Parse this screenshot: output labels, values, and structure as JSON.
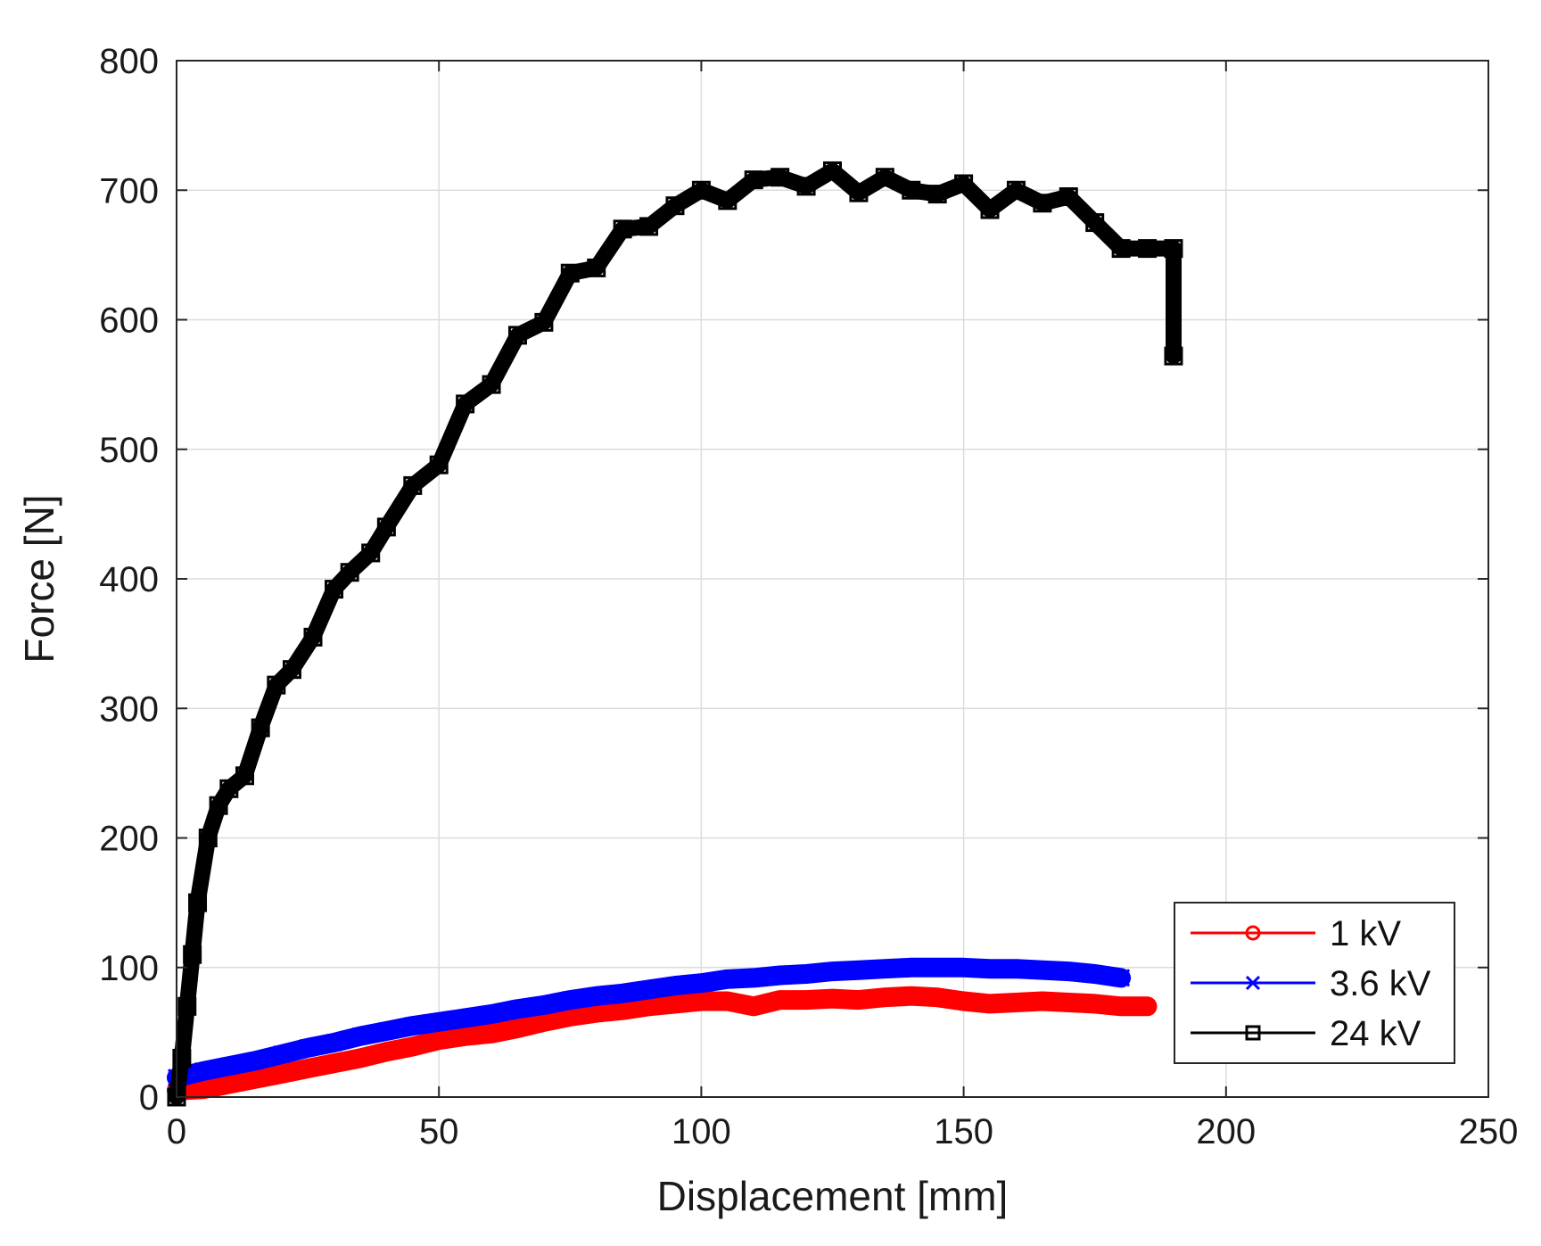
{
  "chart_data": {
    "type": "line",
    "title": "",
    "xlabel": "Displacement [mm]",
    "ylabel": "Force [N]",
    "xlim": [
      0,
      250
    ],
    "ylim": [
      0,
      800
    ],
    "xticks": [
      0,
      50,
      100,
      150,
      200,
      250
    ],
    "yticks": [
      0,
      100,
      200,
      300,
      400,
      500,
      600,
      700,
      800
    ],
    "grid": true,
    "legend_position": "bottom-right",
    "series": [
      {
        "name": "1 kV",
        "color": "#ff0000",
        "marker": "circle",
        "x": [
          0,
          5,
          10,
          15,
          20,
          25,
          30,
          35,
          40,
          45,
          50,
          55,
          60,
          65,
          70,
          75,
          80,
          85,
          90,
          95,
          100,
          105,
          110,
          115,
          120,
          125,
          130,
          135,
          140,
          145,
          150,
          155,
          160,
          165,
          170,
          175,
          180,
          185
        ],
        "y": [
          5,
          6,
          10,
          14,
          18,
          22,
          26,
          30,
          35,
          39,
          44,
          47,
          49,
          53,
          58,
          62,
          65,
          67,
          70,
          72,
          74,
          74,
          70,
          75,
          75,
          76,
          75,
          77,
          78,
          77,
          74,
          72,
          73,
          74,
          73,
          72,
          70,
          70
        ]
      },
      {
        "name": "3.6 kV",
        "color": "#0000ff",
        "marker": "x",
        "x": [
          0,
          5,
          10,
          15,
          20,
          25,
          30,
          35,
          40,
          45,
          50,
          55,
          60,
          65,
          70,
          75,
          80,
          85,
          90,
          95,
          100,
          105,
          110,
          115,
          120,
          125,
          130,
          135,
          140,
          145,
          150,
          155,
          160,
          165,
          170,
          175,
          180
        ],
        "y": [
          15,
          20,
          24,
          28,
          33,
          38,
          42,
          47,
          51,
          55,
          58,
          61,
          64,
          68,
          71,
          75,
          78,
          80,
          83,
          86,
          88,
          91,
          92,
          94,
          95,
          97,
          98,
          99,
          100,
          100,
          100,
          99,
          99,
          98,
          97,
          95,
          92
        ]
      },
      {
        "name": "24 kV",
        "color": "#000000",
        "marker": "square",
        "x": [
          0,
          1,
          2,
          3,
          4,
          6,
          8,
          10,
          13,
          16,
          19,
          22,
          26,
          30,
          33,
          37,
          40,
          45,
          50,
          55,
          60,
          65,
          70,
          75,
          80,
          85,
          90,
          95,
          100,
          105,
          110,
          115,
          120,
          125,
          130,
          135,
          140,
          145,
          150,
          155,
          160,
          165,
          170,
          175,
          180,
          185,
          190,
          190
        ],
        "y": [
          0,
          30,
          70,
          110,
          150,
          200,
          225,
          238,
          248,
          285,
          318,
          330,
          355,
          392,
          405,
          420,
          440,
          472,
          488,
          535,
          550,
          588,
          598,
          636,
          640,
          670,
          672,
          688,
          700,
          692,
          708,
          710,
          703,
          715,
          698,
          710,
          700,
          697,
          705,
          685,
          700,
          690,
          695,
          675,
          655,
          655,
          655,
          572
        ]
      }
    ]
  }
}
